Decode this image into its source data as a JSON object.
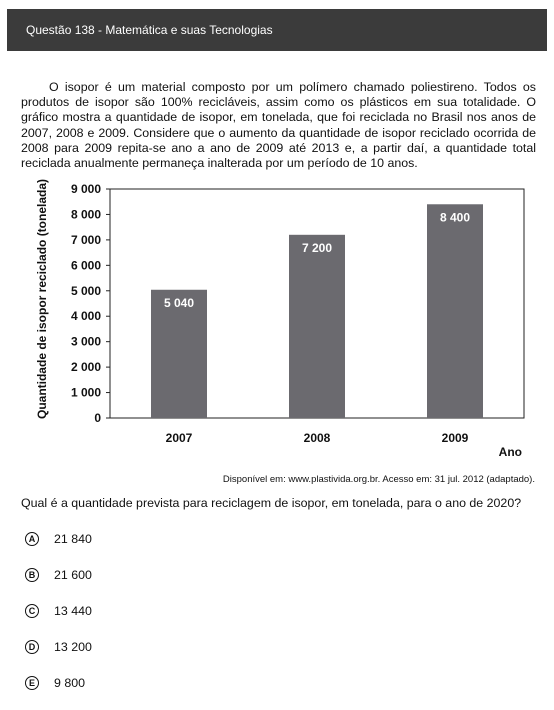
{
  "header": {
    "title": "Questão 138 - Matemática e suas Tecnologias"
  },
  "intro": "O isopor é um material composto por um polímero chamado poliestireno. Todos os produtos de isopor são 100% recicláveis, assim como os plásticos em sua totalidade. O gráfico mostra a quantidade de isopor, em tonelada, que foi reciclada no Brasil nos anos de 2007, 2008 e 2009. Considere que o aumento da quantidade de isopor reciclado ocorrida de 2008 para 2009 repita-se ano a ano de 2009 até 2013 e, a partir daí, a quantidade total reciclada anualmente permaneça inalterada por um período de 10 anos.",
  "chart_data": {
    "type": "bar",
    "categories": [
      "2007",
      "2008",
      "2009"
    ],
    "values": [
      5040,
      7200,
      8400
    ],
    "value_labels": [
      "5 040",
      "7 200",
      "8 400"
    ],
    "ylabel": "Quantidade de isopor reciclado (tonelada)",
    "xlabel": "Ano",
    "ylim": [
      0,
      9000
    ],
    "yticks": [
      "0",
      "1 000",
      "2 000",
      "3 000",
      "4 000",
      "5 000",
      "6 000",
      "7 000",
      "8 000",
      "9 000"
    ],
    "bar_color": "#6b6a6f",
    "grid": false
  },
  "source": "Disponível em: www.plastivida.org.br. Acesso em: 31 jul. 2012 (adaptado).",
  "question": "Qual é a quantidade prevista para reciclagem de isopor, em tonelada, para o ano de 2020?",
  "options": [
    {
      "letter": "A",
      "text": "21 840"
    },
    {
      "letter": "B",
      "text": "21 600"
    },
    {
      "letter": "C",
      "text": "13 440"
    },
    {
      "letter": "D",
      "text": "13 200"
    },
    {
      "letter": "E",
      "text": "9 800"
    }
  ]
}
